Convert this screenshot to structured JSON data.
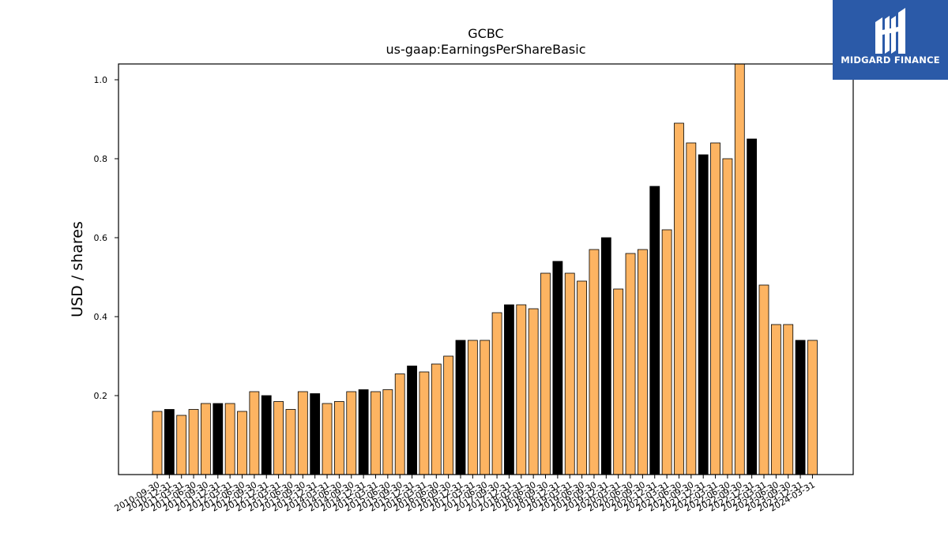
{
  "logo": {
    "text": "MIDGARD FINANCE",
    "background": "#2b5aa8"
  },
  "colors": {
    "default_bar": "#fdb462",
    "highlight_bar": "#000000"
  },
  "chart_data": {
    "type": "bar",
    "title": "GCBC",
    "subtitle": "us-gaap:EarningsPerShareBasic",
    "ylabel": "USD / shares",
    "xlabel": "",
    "ylim": [
      0,
      1.04
    ],
    "yticks": [
      0.2,
      0.4,
      0.6,
      0.8,
      1.0
    ],
    "grid": false,
    "categories": [
      "2010-09-30",
      "2010-12-31",
      "2011-03-31",
      "2011-06-30",
      "2011-09-30",
      "2011-12-31",
      "2012-03-31",
      "2012-06-30",
      "2012-09-30",
      "2012-12-31",
      "2013-03-31",
      "2013-06-30",
      "2013-09-30",
      "2013-12-31",
      "2014-03-31",
      "2014-06-30",
      "2014-09-30",
      "2014-12-31",
      "2015-03-31",
      "2015-06-30",
      "2015-09-30",
      "2015-12-31",
      "2016-03-31",
      "2016-06-30",
      "2016-09-30",
      "2016-12-31",
      "2017-03-31",
      "2017-06-30",
      "2017-09-30",
      "2017-12-31",
      "2018-03-31",
      "2018-06-30",
      "2018-09-30",
      "2018-12-31",
      "2019-03-31",
      "2019-06-30",
      "2019-09-30",
      "2019-12-31",
      "2020-03-31",
      "2020-06-30",
      "2020-09-30",
      "2020-12-31",
      "2021-03-31",
      "2021-06-30",
      "2021-09-30",
      "2021-12-31",
      "2022-03-31",
      "2022-06-30",
      "2022-09-30",
      "2022-12-31",
      "2023-03-31",
      "2023-06-30",
      "2023-09-30",
      "2023-12-31",
      "2024-03-31"
    ],
    "values": [
      0.16,
      0.165,
      0.15,
      0.165,
      0.18,
      0.18,
      0.18,
      0.16,
      0.21,
      0.2,
      0.185,
      0.165,
      0.21,
      0.205,
      0.18,
      0.185,
      0.21,
      0.215,
      0.21,
      0.215,
      0.255,
      0.275,
      0.26,
      0.28,
      0.3,
      0.34,
      0.34,
      0.34,
      0.41,
      0.43,
      0.43,
      0.42,
      0.51,
      0.54,
      0.51,
      0.49,
      0.57,
      0.6,
      0.47,
      0.56,
      0.57,
      0.73,
      0.62,
      0.89,
      0.84,
      0.81,
      0.84,
      0.8,
      1.04,
      0.85,
      0.48,
      0.38,
      0.38,
      0.34,
      0.34
    ],
    "highlight": [
      false,
      true,
      false,
      false,
      false,
      true,
      false,
      false,
      false,
      true,
      false,
      false,
      false,
      true,
      false,
      false,
      false,
      true,
      false,
      false,
      false,
      true,
      false,
      false,
      false,
      true,
      false,
      false,
      false,
      true,
      false,
      false,
      false,
      true,
      false,
      false,
      false,
      true,
      false,
      false,
      false,
      true,
      false,
      false,
      false,
      true,
      false,
      false,
      false,
      true,
      false,
      false,
      false,
      true,
      false
    ]
  }
}
